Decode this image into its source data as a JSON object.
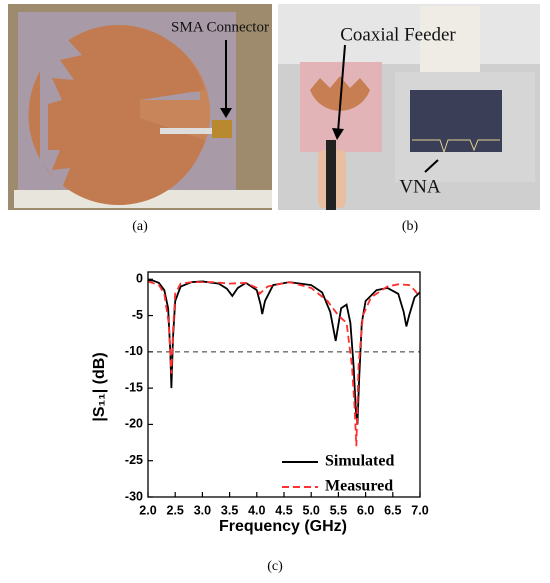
{
  "panels": [
    {
      "label": "(a)",
      "annotations": [
        "SMA Connector"
      ]
    },
    {
      "label": "(b)",
      "annotations": [
        "Coaxial Feeder",
        "VNA"
      ]
    },
    {
      "label": "(c)"
    }
  ],
  "chart_data": {
    "type": "line",
    "xlabel": "Frequency (GHz)",
    "ylabel": "|S₁₁| (dB)",
    "xlim": [
      2.0,
      7.0
    ],
    "ylim": [
      -30,
      1
    ],
    "xticks": [
      {
        "value": 2.0,
        "label": "2.0"
      },
      {
        "value": 2.5,
        "label": "2.5"
      },
      {
        "value": 3.0,
        "label": "3.0"
      },
      {
        "value": 3.5,
        "label": "3.5"
      },
      {
        "value": 4.0,
        "label": "4.0"
      },
      {
        "value": 4.5,
        "label": "4.5"
      },
      {
        "value": 5.0,
        "label": "5.0"
      },
      {
        "value": 5.5,
        "label": "5.5"
      },
      {
        "value": 6.0,
        "label": "6.0"
      },
      {
        "value": 6.5,
        "label": "6.5"
      },
      {
        "value": 7.0,
        "label": "7.0"
      }
    ],
    "yticks": [
      0,
      -5,
      -10,
      -15,
      -20,
      -25,
      -30
    ],
    "reference_line": -10,
    "legend": "lower right",
    "series": [
      {
        "name": "Simulated",
        "color": "#000000",
        "dash": "solid",
        "x": [
          2.0,
          2.1,
          2.2,
          2.3,
          2.37,
          2.41,
          2.43,
          2.46,
          2.5,
          2.6,
          2.8,
          3.0,
          3.3,
          3.45,
          3.55,
          3.65,
          3.8,
          4.0,
          4.07,
          4.1,
          4.15,
          4.3,
          4.6,
          5.0,
          5.2,
          5.35,
          5.45,
          5.55,
          5.65,
          5.72,
          5.78,
          5.82,
          5.85,
          5.88,
          5.93,
          6.0,
          6.2,
          6.4,
          6.6,
          6.7,
          6.75,
          6.8,
          6.9,
          7.0
        ],
        "values": [
          -0.1,
          -0.2,
          -0.5,
          -1.5,
          -4,
          -10,
          -15,
          -8,
          -3,
          -1,
          -0.4,
          -0.3,
          -0.6,
          -1.3,
          -2.3,
          -1.2,
          -0.5,
          -1.5,
          -3.5,
          -4.8,
          -3,
          -0.8,
          -0.4,
          -0.8,
          -1.8,
          -4.5,
          -8.5,
          -4,
          -3.5,
          -6,
          -12,
          -18,
          -20,
          -14,
          -6,
          -3,
          -1.5,
          -1.2,
          -2,
          -4.5,
          -6.5,
          -5,
          -2.5,
          -1.8
        ]
      },
      {
        "name": "Measured",
        "color": "#ff3030",
        "dash": "dashed",
        "x": [
          2.0,
          2.2,
          2.3,
          2.38,
          2.43,
          2.46,
          2.5,
          2.6,
          2.8,
          3.2,
          3.5,
          3.8,
          4.0,
          4.05,
          4.2,
          4.6,
          5.0,
          5.3,
          5.5,
          5.65,
          5.75,
          5.8,
          5.83,
          5.87,
          5.95,
          6.1,
          6.4,
          6.6,
          6.8,
          6.9,
          7.0
        ],
        "values": [
          -0.3,
          -0.8,
          -2,
          -6,
          -13,
          -7,
          -2,
          -0.6,
          -0.4,
          -0.4,
          -0.6,
          -0.5,
          -1.2,
          -2,
          -1,
          -0.4,
          -1.2,
          -3,
          -5,
          -6,
          -12,
          -18,
          -23,
          -12,
          -5,
          -2.5,
          -1,
          -0.7,
          -0.8,
          -1.5,
          -2.5
        ]
      }
    ]
  }
}
